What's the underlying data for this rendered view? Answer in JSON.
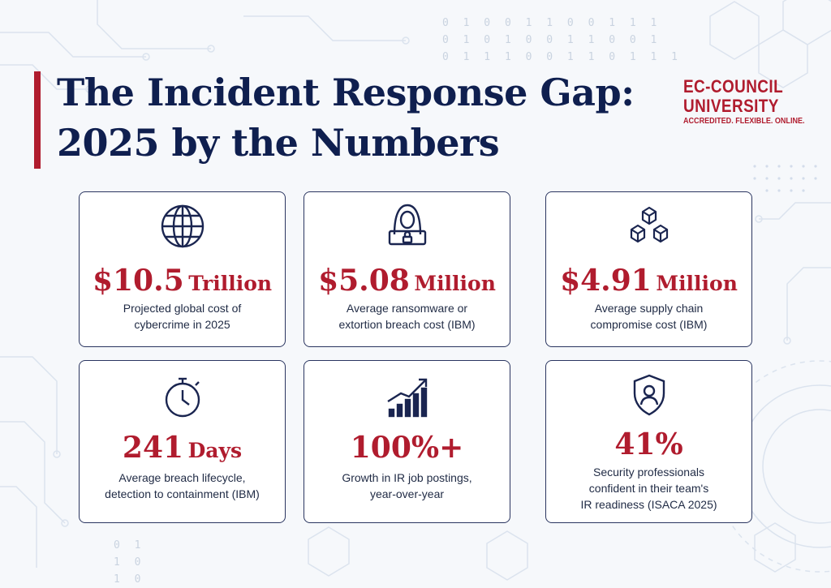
{
  "title": {
    "line1": "The Incident Response Gap:",
    "line2": "2025 by the Numbers"
  },
  "brand": {
    "line1": "EC-COUNCIL",
    "line2": "UNIVERSITY",
    "tagline": "ACCREDITED. FLEXIBLE. ONLINE."
  },
  "binary_top": [
    "0 1 0 0 1 1 0 0 1 1 1",
    "0 1 0 1 0 0 1 1 0 0 1",
    "0 1 1 1 0 0 1 1 0 1 1 1"
  ],
  "binary_bottom": [
    "0 1",
    "1 0",
    "1 0"
  ],
  "cards": [
    {
      "icon": "globe-icon",
      "number": "$10.5",
      "unit": "Trillion",
      "desc1": "Projected global cost of",
      "desc2": "cybercrime in 2025",
      "desc3": ""
    },
    {
      "icon": "hooded-hacker-icon",
      "number": "$5.08",
      "unit": "Million",
      "desc1": "Average ransomware or",
      "desc2": "extortion breach cost (IBM)",
      "desc3": ""
    },
    {
      "icon": "boxes-icon",
      "number": "$4.91",
      "unit": "Million",
      "desc1": "Average supply chain",
      "desc2": "compromise cost (IBM)",
      "desc3": ""
    },
    {
      "icon": "stopwatch-icon",
      "number": "241",
      "unit": "Days",
      "desc1": "Average breach lifecycle,",
      "desc2": "detection to containment (IBM)",
      "desc3": ""
    },
    {
      "icon": "growth-chart-icon",
      "number": "100%+",
      "unit": "",
      "desc1": "Growth in IR job postings,",
      "desc2": "year-over-year",
      "desc3": ""
    },
    {
      "icon": "shield-user-icon",
      "number": "41%",
      "unit": "",
      "desc1": "Security professionals",
      "desc2": "confident in their team's",
      "desc3": "IR readiness (ISACA 2025)"
    }
  ],
  "colors": {
    "navy": "#0f1f4f",
    "accent_red": "#b01c2e",
    "card_border": "#2a3560",
    "background": "#f6f8fb"
  }
}
